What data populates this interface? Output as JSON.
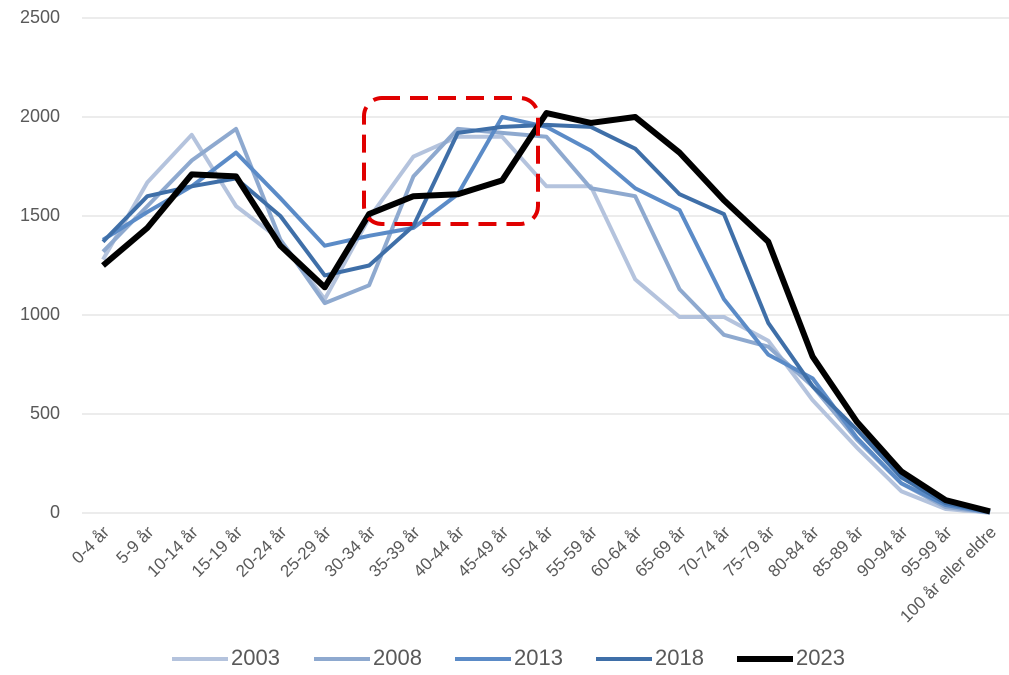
{
  "chart_data": {
    "type": "line",
    "categories": [
      "0-4 år",
      "5-9 år",
      "10-14 år",
      "15-19 år",
      "20-24 år",
      "25-29 år",
      "30-34 år",
      "35-39 år",
      "40-44 år",
      "45-49 år",
      "50-54 år",
      "55-59 år",
      "60-64 år",
      "65-69 år",
      "70-74 år",
      "75-79 år",
      "80-84 år",
      "85-89 år",
      "90-94 år",
      "95-99 år",
      "100 år eller eldre"
    ],
    "series": [
      {
        "name": "2003",
        "color": "#b4c3dd",
        "values": [
          1280,
          1670,
          1910,
          1550,
          1380,
          1080,
          1490,
          1800,
          1900,
          1900,
          1650,
          1650,
          1180,
          990,
          990,
          870,
          570,
          330,
          110,
          20,
          1
        ]
      },
      {
        "name": "2008",
        "color": "#8ea9cf",
        "values": [
          1320,
          1550,
          1780,
          1940,
          1380,
          1060,
          1150,
          1700,
          1940,
          1920,
          1900,
          1640,
          1600,
          1130,
          900,
          840,
          640,
          370,
          150,
          30,
          2
        ]
      },
      {
        "name": "2013",
        "color": "#5b8bc7",
        "values": [
          1380,
          1520,
          1650,
          1820,
          1590,
          1350,
          1400,
          1440,
          1610,
          2000,
          1950,
          1830,
          1640,
          1530,
          1080,
          800,
          680,
          380,
          150,
          40,
          3
        ]
      },
      {
        "name": "2018",
        "color": "#3f6fa8",
        "values": [
          1370,
          1600,
          1650,
          1690,
          1500,
          1200,
          1250,
          1450,
          1920,
          1950,
          1960,
          1950,
          1840,
          1610,
          1510,
          960,
          640,
          420,
          180,
          50,
          5
        ]
      },
      {
        "name": "2023",
        "color": "#000000",
        "values": [
          1250,
          1440,
          1710,
          1700,
          1350,
          1140,
          1510,
          1600,
          1610,
          1680,
          2020,
          1970,
          2000,
          1820,
          1580,
          1370,
          790,
          460,
          210,
          65,
          8
        ]
      }
    ],
    "ylim": [
      0,
      2500
    ],
    "yticks": [
      0,
      500,
      1000,
      1500,
      2000,
      2500
    ],
    "grid": true,
    "legend": "bottom"
  }
}
